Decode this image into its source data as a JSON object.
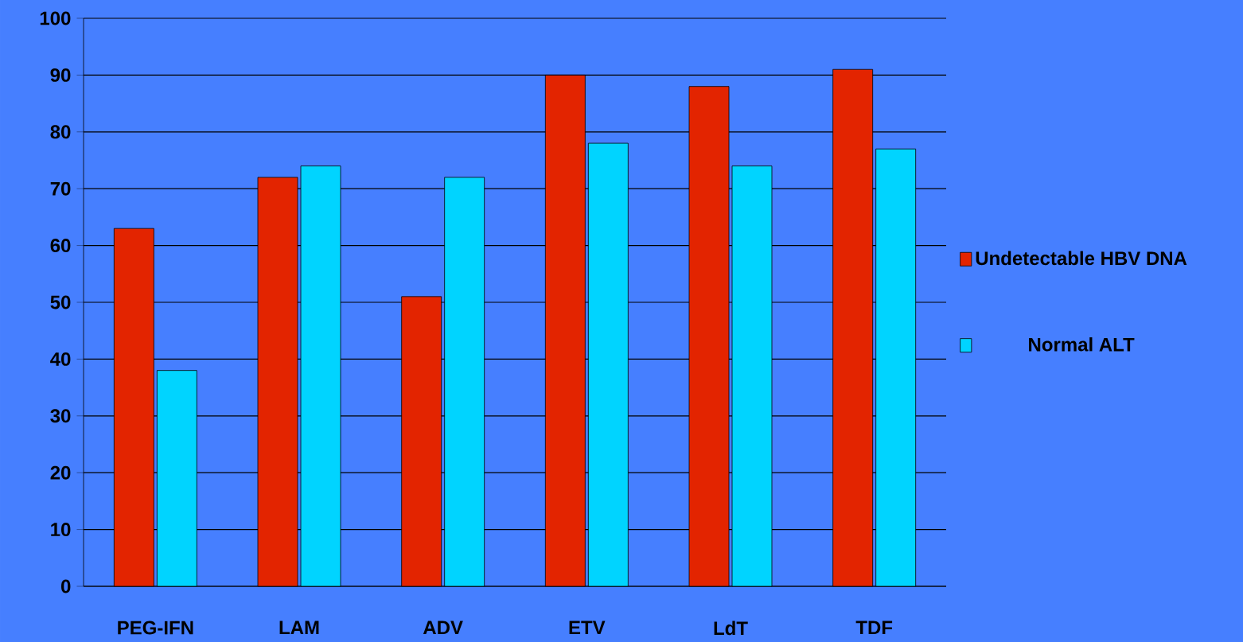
{
  "chart_data": {
    "type": "bar",
    "categories": [
      "PEG-IFN",
      "LAM",
      "ADV",
      "ETV",
      "LdT",
      "TDF"
    ],
    "series": [
      {
        "name": "Undetectable HBV DNA",
        "color": "#e32400",
        "values": [
          63,
          72,
          51,
          90,
          88,
          91
        ]
      },
      {
        "name": "Normal ALT",
        "color": "#00d4ff",
        "values": [
          38,
          74,
          72,
          78,
          74,
          77
        ]
      }
    ],
    "ylim": [
      0,
      100
    ],
    "yticks": [
      0,
      10,
      20,
      30,
      40,
      50,
      60,
      70,
      80,
      90,
      100
    ],
    "grid": "y",
    "legend": "right"
  }
}
